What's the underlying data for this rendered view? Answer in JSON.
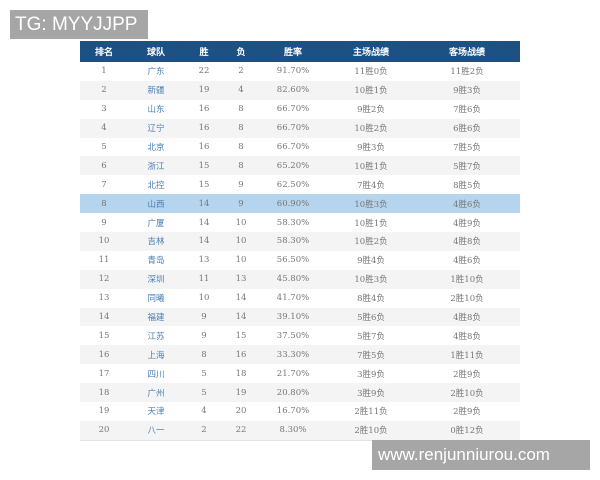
{
  "watermark_top": "TG: MYYJJPP",
  "watermark_bottom": "www.renjunniurou.com",
  "highlight_color": "#b5d4ee",
  "header_color": "#1d5083",
  "columns": [
    "排名",
    "球队",
    "胜",
    "负",
    "胜率",
    "主场战绩",
    "客场战绩"
  ],
  "highlighted_rank": 8,
  "rows": [
    [
      "1",
      "广东",
      "22",
      "2",
      "91.70%",
      "11胜0负",
      "11胜2负"
    ],
    [
      "2",
      "新疆",
      "19",
      "4",
      "82.60%",
      "10胜1负",
      "9胜3负"
    ],
    [
      "3",
      "山东",
      "16",
      "8",
      "66.70%",
      "9胜2负",
      "7胜6负"
    ],
    [
      "4",
      "辽宁",
      "16",
      "8",
      "66.70%",
      "10胜2负",
      "6胜6负"
    ],
    [
      "5",
      "北京",
      "16",
      "8",
      "66.70%",
      "9胜3负",
      "7胜5负"
    ],
    [
      "6",
      "浙江",
      "15",
      "8",
      "65.20%",
      "10胜1负",
      "5胜7负"
    ],
    [
      "7",
      "北控",
      "15",
      "9",
      "62.50%",
      "7胜4负",
      "8胜5负"
    ],
    [
      "8",
      "山西",
      "14",
      "9",
      "60.90%",
      "10胜3负",
      "4胜6负"
    ],
    [
      "9",
      "广厦",
      "14",
      "10",
      "58.30%",
      "10胜1负",
      "4胜9负"
    ],
    [
      "10",
      "吉林",
      "14",
      "10",
      "58.30%",
      "10胜2负",
      "4胜8负"
    ],
    [
      "11",
      "青岛",
      "13",
      "10",
      "56.50%",
      "9胜4负",
      "4胜6负"
    ],
    [
      "12",
      "深圳",
      "11",
      "13",
      "45.80%",
      "10胜3负",
      "1胜10负"
    ],
    [
      "13",
      "同曦",
      "10",
      "14",
      "41.70%",
      "8胜4负",
      "2胜10负"
    ],
    [
      "14",
      "福建",
      "9",
      "14",
      "39.10%",
      "5胜6负",
      "4胜8负"
    ],
    [
      "15",
      "江苏",
      "9",
      "15",
      "37.50%",
      "5胜7负",
      "4胜8负"
    ],
    [
      "16",
      "上海",
      "8",
      "16",
      "33.30%",
      "7胜5负",
      "1胜11负"
    ],
    [
      "17",
      "四川",
      "5",
      "18",
      "21.70%",
      "3胜9负",
      "2胜9负"
    ],
    [
      "18",
      "广州",
      "5",
      "19",
      "20.80%",
      "3胜9负",
      "2胜10负"
    ],
    [
      "19",
      "天津",
      "4",
      "20",
      "16.70%",
      "2胜11负",
      "2胜9负"
    ],
    [
      "20",
      "八一",
      "2",
      "22",
      "8.30%",
      "2胜10负",
      "0胜12负"
    ]
  ]
}
